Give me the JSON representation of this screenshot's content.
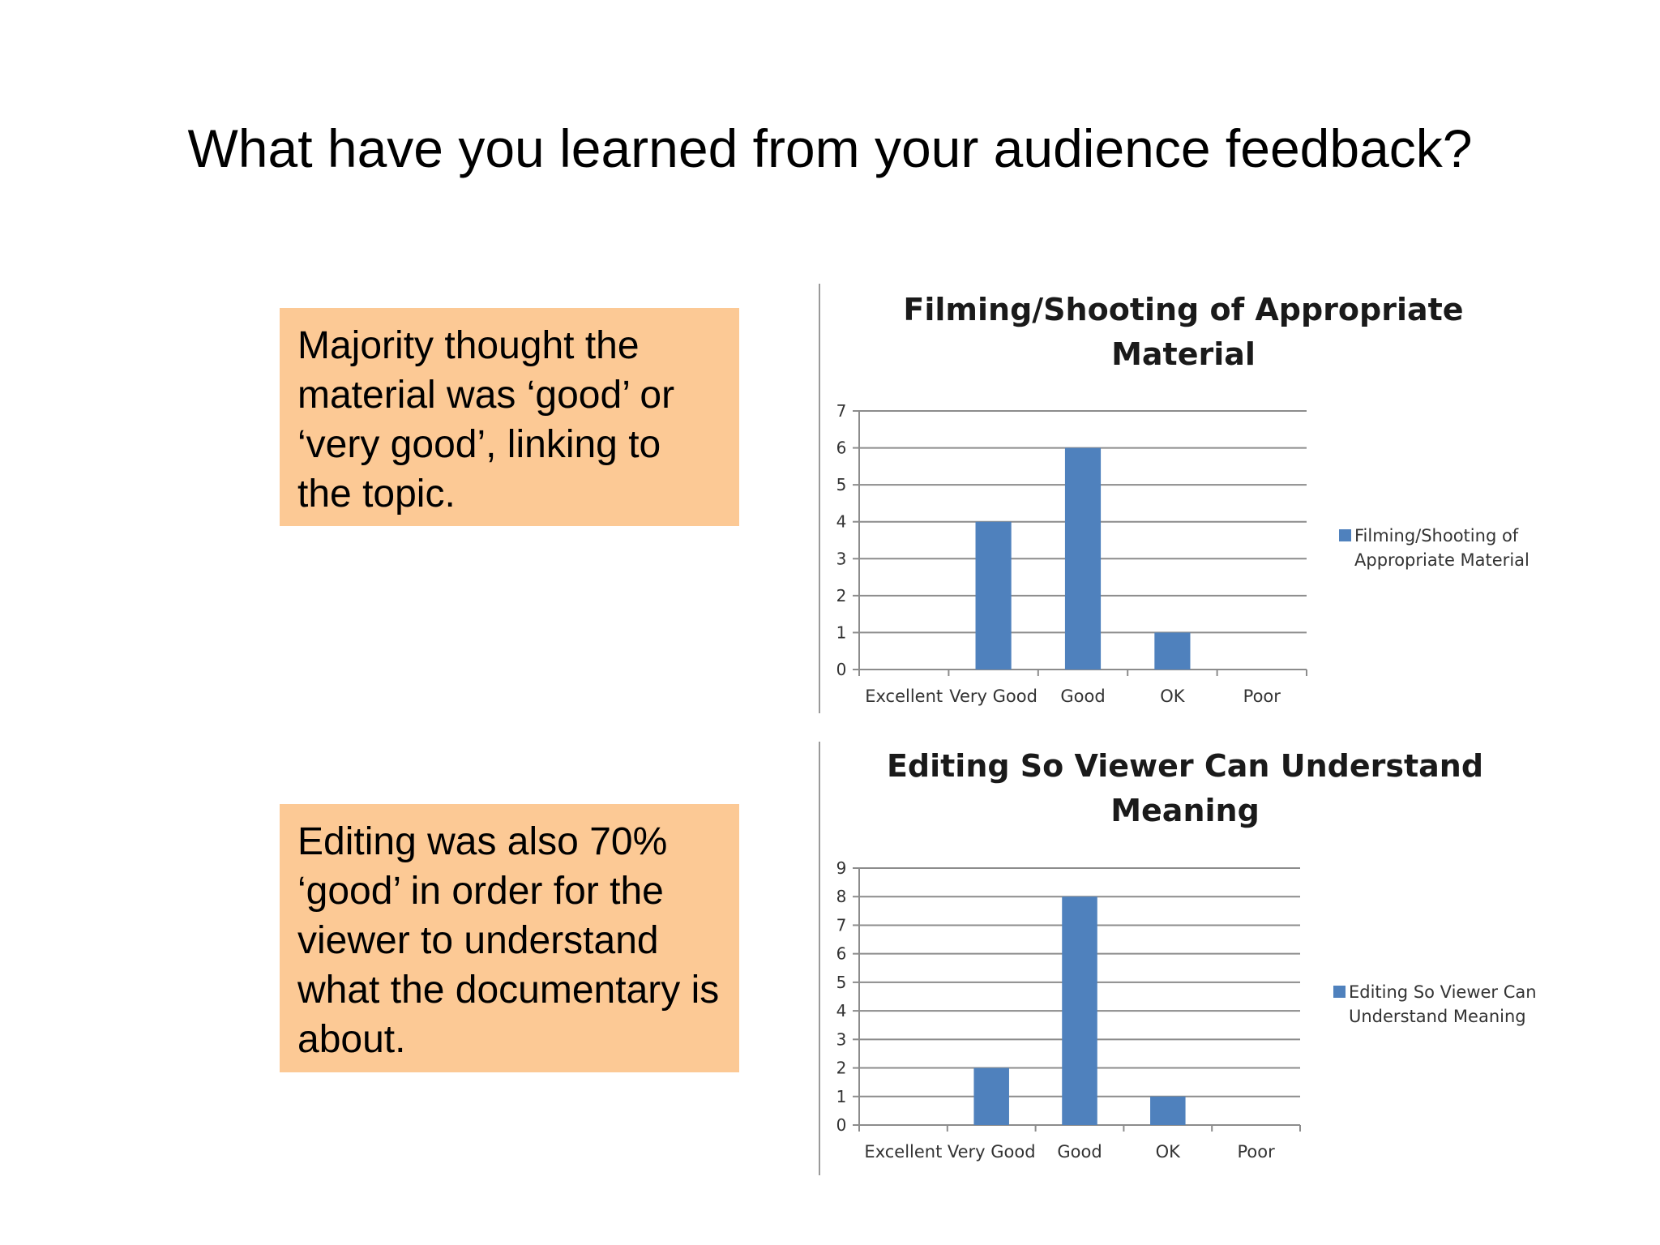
{
  "slide": {
    "title": "What have you learned from your audience feedback?"
  },
  "notes": [
    "Majority thought the material was ‘good’ or ‘very good’, linking to the topic.",
    "Editing was also 70% ‘good’ in order for the viewer to understand what the documentary is about."
  ],
  "colors": {
    "bar": "#4f81bd",
    "note_background": "#fcc995",
    "gridline": "#8c8c8c"
  },
  "chart_data": [
    {
      "type": "bar",
      "title_lines": [
        "Filming/Shooting of Appropriate",
        "Material"
      ],
      "categories": [
        "Excellent",
        "Very Good",
        "Good",
        "OK",
        "Poor"
      ],
      "series": [
        {
          "name_lines": [
            "Filming/Shooting of",
            "Appropriate Material"
          ],
          "values": [
            0,
            4,
            6,
            1,
            0
          ]
        }
      ],
      "ylim": [
        0,
        7
      ],
      "yticks": [
        0,
        1,
        2,
        3,
        4,
        5,
        6,
        7
      ],
      "grid": true,
      "legend": "right"
    },
    {
      "type": "bar",
      "title_lines": [
        "Editing So Viewer Can Understand",
        "Meaning"
      ],
      "categories": [
        "Excellent",
        "Very Good",
        "Good",
        "OK",
        "Poor"
      ],
      "series": [
        {
          "name_lines": [
            "Editing So Viewer Can",
            "Understand Meaning"
          ],
          "values": [
            0,
            2,
            8,
            1,
            0
          ]
        }
      ],
      "ylim": [
        0,
        9
      ],
      "yticks": [
        0,
        1,
        2,
        3,
        4,
        5,
        6,
        7,
        8,
        9
      ],
      "grid": true,
      "legend": "right"
    }
  ]
}
